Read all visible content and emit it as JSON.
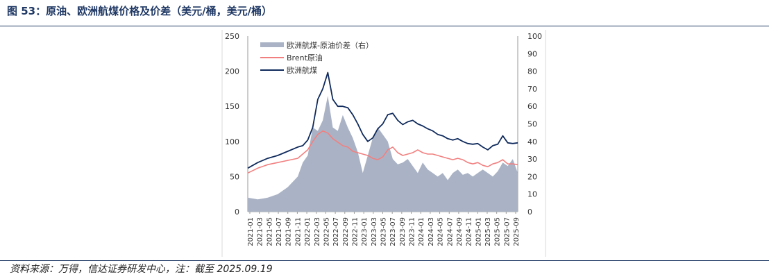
{
  "title": "图 53：原油、欧洲航煤价格及价差（美元/桶，美元/桶）",
  "source": "资料来源：万得，信达证券研发中心，注：截至 2025.09.19",
  "colors": {
    "spread": "#aab3c5",
    "brent": "#f27f7f",
    "jet": "#0f2a5c",
    "rule": "#1f3864",
    "axis": "#9a9a9a"
  },
  "chart_data": {
    "type": "line+area",
    "left_axis": {
      "min": 0,
      "max": 250,
      "ticks": [
        "0",
        "50",
        "100",
        "150",
        "200",
        "250"
      ]
    },
    "right_axis": {
      "min": 0,
      "max": 100,
      "ticks": [
        "0",
        "10",
        "20",
        "30",
        "40",
        "50",
        "60",
        "70",
        "80",
        "90",
        "100"
      ]
    },
    "x_ticks": [
      "2021-01",
      "2021-03",
      "2021-05",
      "2021-07",
      "2021-09",
      "2021-11",
      "2022-01",
      "2022-03",
      "2022-05",
      "2022-07",
      "2022-09",
      "2022-11",
      "2023-01",
      "2023-03",
      "2023-05",
      "2023-07",
      "2023-09",
      "2023-11",
      "2024-01",
      "2024-03",
      "2024-05",
      "2024-07",
      "2024-09",
      "2024-11",
      "2025-01",
      "2025-03",
      "2025-05",
      "2025-07",
      "2025-09"
    ],
    "legend_position": "top-left",
    "series": [
      {
        "name": "欧洲航煤-原油价差（右）",
        "kind": "area",
        "axis": "right",
        "points": [
          [
            0,
            8
          ],
          [
            2,
            7
          ],
          [
            4,
            8
          ],
          [
            6,
            10
          ],
          [
            8,
            14
          ],
          [
            10,
            20
          ],
          [
            11,
            28
          ],
          [
            12,
            32
          ],
          [
            13,
            48
          ],
          [
            14,
            46
          ],
          [
            15,
            52
          ],
          [
            16,
            66
          ],
          [
            17,
            48
          ],
          [
            18,
            46
          ],
          [
            19,
            55
          ],
          [
            20,
            48
          ],
          [
            21,
            42
          ],
          [
            22,
            34
          ],
          [
            23,
            22
          ],
          [
            24,
            32
          ],
          [
            25,
            42
          ],
          [
            26,
            48
          ],
          [
            27,
            44
          ],
          [
            28,
            40
          ],
          [
            29,
            30
          ],
          [
            30,
            27
          ],
          [
            31,
            28
          ],
          [
            32,
            30
          ],
          [
            33,
            26
          ],
          [
            34,
            22
          ],
          [
            35,
            28
          ],
          [
            36,
            24
          ],
          [
            37,
            22
          ],
          [
            38,
            20
          ],
          [
            39,
            22
          ],
          [
            40,
            18
          ],
          [
            41,
            22
          ],
          [
            42,
            24
          ],
          [
            43,
            21
          ],
          [
            44,
            22
          ],
          [
            45,
            20
          ],
          [
            46,
            22
          ],
          [
            47,
            24
          ],
          [
            48,
            22
          ],
          [
            49,
            20
          ],
          [
            50,
            23
          ],
          [
            51,
            28
          ],
          [
            52,
            26
          ],
          [
            53,
            30
          ],
          [
            54,
            22
          ]
        ]
      },
      {
        "name": "Brent原油",
        "kind": "line",
        "axis": "left",
        "points": [
          [
            0,
            55
          ],
          [
            2,
            62
          ],
          [
            4,
            67
          ],
          [
            6,
            70
          ],
          [
            8,
            73
          ],
          [
            10,
            76
          ],
          [
            11,
            82
          ],
          [
            12,
            88
          ],
          [
            13,
            100
          ],
          [
            14,
            110
          ],
          [
            15,
            115
          ],
          [
            16,
            112
          ],
          [
            17,
            104
          ],
          [
            18,
            99
          ],
          [
            19,
            94
          ],
          [
            20,
            92
          ],
          [
            21,
            86
          ],
          [
            22,
            84
          ],
          [
            23,
            82
          ],
          [
            24,
            80
          ],
          [
            25,
            76
          ],
          [
            26,
            74
          ],
          [
            27,
            78
          ],
          [
            28,
            88
          ],
          [
            29,
            92
          ],
          [
            30,
            84
          ],
          [
            31,
            80
          ],
          [
            32,
            82
          ],
          [
            33,
            84
          ],
          [
            34,
            88
          ],
          [
            35,
            84
          ],
          [
            36,
            82
          ],
          [
            37,
            82
          ],
          [
            38,
            80
          ],
          [
            39,
            78
          ],
          [
            40,
            76
          ],
          [
            41,
            74
          ],
          [
            42,
            76
          ],
          [
            43,
            74
          ],
          [
            44,
            70
          ],
          [
            45,
            68
          ],
          [
            46,
            70
          ],
          [
            47,
            66
          ],
          [
            48,
            64
          ],
          [
            49,
            68
          ],
          [
            50,
            70
          ],
          [
            51,
            74
          ],
          [
            52,
            68
          ],
          [
            53,
            68
          ],
          [
            54,
            67
          ]
        ]
      },
      {
        "name": "欧洲航煤",
        "kind": "line",
        "axis": "left",
        "points": [
          [
            0,
            62
          ],
          [
            2,
            70
          ],
          [
            4,
            76
          ],
          [
            6,
            80
          ],
          [
            8,
            86
          ],
          [
            10,
            92
          ],
          [
            11,
            94
          ],
          [
            12,
            102
          ],
          [
            13,
            120
          ],
          [
            14,
            160
          ],
          [
            15,
            175
          ],
          [
            16,
            198
          ],
          [
            17,
            160
          ],
          [
            18,
            150
          ],
          [
            19,
            150
          ],
          [
            20,
            148
          ],
          [
            21,
            138
          ],
          [
            22,
            125
          ],
          [
            23,
            110
          ],
          [
            24,
            100
          ],
          [
            25,
            105
          ],
          [
            26,
            118
          ],
          [
            27,
            125
          ],
          [
            28,
            138
          ],
          [
            29,
            140
          ],
          [
            30,
            130
          ],
          [
            31,
            124
          ],
          [
            32,
            128
          ],
          [
            33,
            130
          ],
          [
            34,
            125
          ],
          [
            35,
            122
          ],
          [
            36,
            118
          ],
          [
            37,
            115
          ],
          [
            38,
            110
          ],
          [
            39,
            108
          ],
          [
            40,
            104
          ],
          [
            41,
            102
          ],
          [
            42,
            104
          ],
          [
            43,
            100
          ],
          [
            44,
            97
          ],
          [
            45,
            96
          ],
          [
            46,
            97
          ],
          [
            47,
            92
          ],
          [
            48,
            88
          ],
          [
            49,
            94
          ],
          [
            50,
            96
          ],
          [
            51,
            108
          ],
          [
            52,
            98
          ],
          [
            53,
            97
          ],
          [
            54,
            98
          ]
        ]
      }
    ]
  }
}
